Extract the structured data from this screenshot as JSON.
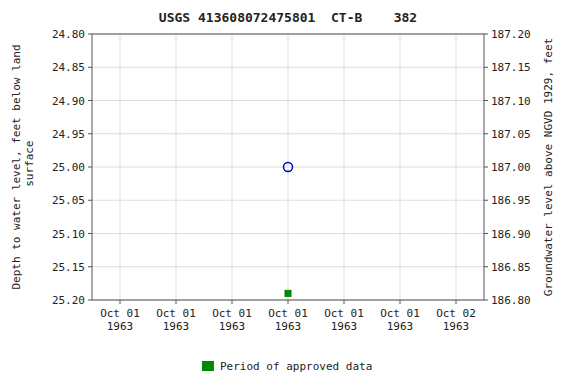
{
  "chart_data": {
    "type": "scatter",
    "title": "USGS 413608072475801  CT-B    382",
    "y_label": "Depth to water level, feet below land\n surface",
    "y2_label": "Groundwater level above NGVD 1929, feet",
    "categories": [
      "Oct 01\n1963",
      "Oct 01\n1963",
      "Oct 01\n1963",
      "Oct 01\n1963",
      "Oct 01\n1963",
      "Oct 01\n1963",
      "Oct 02\n1963"
    ],
    "series": [
      {
        "color": "#0000bb",
        "marker": "open-circle",
        "values": [
          null,
          null,
          null,
          25.0,
          null,
          null,
          null
        ]
      },
      {
        "name": "Period of approved data",
        "color": "#008800",
        "marker": "square",
        "values": [
          null,
          null,
          null,
          25.19,
          null,
          null,
          null
        ]
      }
    ],
    "ylim": [
      25.2,
      24.8
    ],
    "yticks": [
      {
        "value": 24.8,
        "label": "24.80"
      },
      24.85,
      {
        "value": 24.9,
        "label": "24.90"
      },
      24.95,
      {
        "value": 25.0,
        "label": "25.00"
      },
      25.05,
      {
        "value": 25.1,
        "label": "25.10"
      },
      25.15,
      {
        "value": 25.2,
        "label": "25.20"
      }
    ],
    "y2lim": [
      186.8,
      187.2
    ],
    "y2ticks": [
      {
        "value": 187.2,
        "label": "187.20"
      },
      187.15,
      {
        "value": 187.1,
        "label": "187.10"
      },
      187.05,
      {
        "value": 187.0,
        "label": "187.00"
      },
      186.95,
      {
        "value": 186.9,
        "label": "186.90"
      },
      186.85,
      {
        "value": 186.8,
        "label": "186.80"
      }
    ],
    "grid": true,
    "legend": "bottom"
  }
}
